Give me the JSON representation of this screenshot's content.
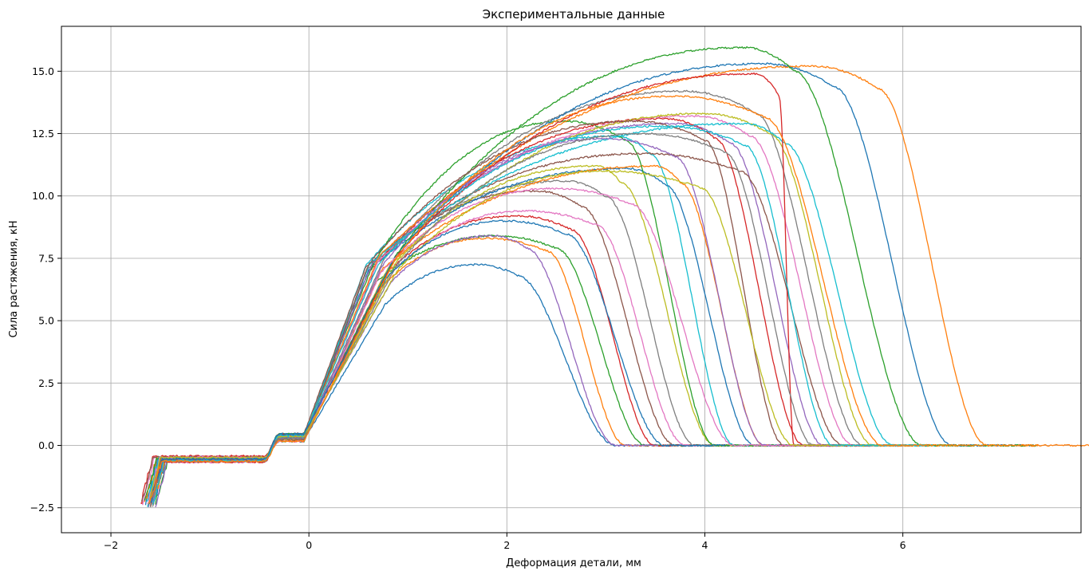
{
  "chart_data": {
    "type": "line",
    "title": "Экспериментальные данные",
    "xlabel": "Деформация детали, мм",
    "ylabel": "Сила растяжения, кН",
    "xlim": [
      -2.5,
      7.8
    ],
    "ylim": [
      -3.5,
      16.8
    ],
    "xticks": [
      -2,
      0,
      2,
      4,
      6
    ],
    "xtick_labels": [
      "−2",
      "0",
      "2",
      "4",
      "6"
    ],
    "yticks": [
      -2.5,
      0.0,
      2.5,
      5.0,
      7.5,
      10.0,
      12.5,
      15.0
    ],
    "ytick_labels": [
      "−2.5",
      "0.0",
      "2.5",
      "5.0",
      "7.5",
      "10.0",
      "12.5",
      "15.0"
    ],
    "grid": true,
    "legend": "none",
    "colors": [
      "#1f77b4",
      "#ff7f0e",
      "#2ca02c",
      "#d62728",
      "#9467bd",
      "#8c564b",
      "#e377c2",
      "#7f7f7f",
      "#bcbd22",
      "#17becf"
    ],
    "series_params": [
      {
        "peak": 7.25,
        "xpeak": 1.7,
        "xdrop": 2.1,
        "xend": 3.1,
        "start": -1.65
      },
      {
        "peak": 8.3,
        "xpeak": 1.8,
        "xdrop": 2.4,
        "xend": 3.2,
        "start": -1.6
      },
      {
        "peak": 8.4,
        "xpeak": 1.9,
        "xdrop": 2.5,
        "xend": 3.4,
        "start": -1.55
      },
      {
        "peak": 9.2,
        "xpeak": 2.1,
        "xdrop": 2.65,
        "xend": 3.5,
        "start": -1.7
      },
      {
        "peak": 8.4,
        "xpeak": 1.85,
        "xdrop": 2.2,
        "xend": 3.1,
        "start": -1.62
      },
      {
        "peak": 10.2,
        "xpeak": 2.3,
        "xdrop": 2.75,
        "xend": 3.7,
        "start": -1.6
      },
      {
        "peak": 9.4,
        "xpeak": 2.2,
        "xdrop": 2.9,
        "xend": 3.8,
        "start": -1.68
      },
      {
        "peak": 10.6,
        "xpeak": 2.6,
        "xdrop": 3.0,
        "xend": 3.9,
        "start": -1.58
      },
      {
        "peak": 11.2,
        "xpeak": 2.9,
        "xdrop": 3.15,
        "xend": 4.1,
        "start": -1.6
      },
      {
        "peak": 12.4,
        "xpeak": 3.1,
        "xdrop": 3.45,
        "xend": 4.3,
        "start": -1.63
      },
      {
        "peak": 11.1,
        "xpeak": 3.2,
        "xdrop": 3.6,
        "xend": 4.5,
        "start": -1.57
      },
      {
        "peak": 11.2,
        "xpeak": 3.5,
        "xdrop": 3.75,
        "xend": 4.6,
        "start": -1.66
      },
      {
        "peak": 13.0,
        "xpeak": 2.6,
        "xdrop": 3.2,
        "xend": 4.1,
        "start": -1.6
      },
      {
        "peak": 13.1,
        "xpeak": 3.6,
        "xdrop": 4.1,
        "xend": 5.0,
        "start": -1.61
      },
      {
        "peak": 12.9,
        "xpeak": 3.7,
        "xdrop": 4.25,
        "xend": 5.2,
        "start": -1.55
      },
      {
        "peak": 11.7,
        "xpeak": 3.4,
        "xdrop": 4.35,
        "xend": 5.4,
        "start": -1.69
      },
      {
        "peak": 13.2,
        "xpeak": 3.9,
        "xdrop": 4.45,
        "xend": 5.5,
        "start": -1.6
      },
      {
        "peak": 14.2,
        "xpeak": 3.8,
        "xdrop": 4.5,
        "xend": 5.6,
        "start": -1.62
      },
      {
        "peak": 13.3,
        "xpeak": 4.0,
        "xdrop": 4.65,
        "xend": 5.7,
        "start": -1.58
      },
      {
        "peak": 12.9,
        "xpeak": 4.4,
        "xdrop": 4.8,
        "xend": 5.9,
        "start": -1.64
      },
      {
        "peak": 15.3,
        "xpeak": 4.6,
        "xdrop": 5.3,
        "xend": 6.5,
        "start": -1.6
      },
      {
        "peak": 15.2,
        "xpeak": 5.1,
        "xdrop": 5.75,
        "xend": 6.85,
        "start": -1.57
      },
      {
        "peak": 15.95,
        "xpeak": 4.4,
        "xdrop": 4.9,
        "xend": 6.2,
        "start": -1.66
      },
      {
        "peak": 14.9,
        "xpeak": 4.5,
        "xdrop": 4.75,
        "xend": 4.9,
        "start": -1.6
      },
      {
        "peak": 12.3,
        "xpeak": 3.0,
        "xdrop": 3.7,
        "xend": 4.6,
        "start": -1.59
      },
      {
        "peak": 13.0,
        "xpeak": 3.3,
        "xdrop": 4.0,
        "xend": 4.8,
        "start": -1.61
      },
      {
        "peak": 10.3,
        "xpeak": 2.5,
        "xdrop": 3.25,
        "xend": 4.3,
        "start": -1.63
      },
      {
        "peak": 12.5,
        "xpeak": 3.4,
        "xdrop": 4.2,
        "xend": 5.1,
        "start": -1.6
      },
      {
        "peak": 11.0,
        "xpeak": 3.0,
        "xdrop": 3.95,
        "xend": 4.9,
        "start": -1.62
      },
      {
        "peak": 12.8,
        "xpeak": 3.6,
        "xdrop": 4.4,
        "xend": 5.3,
        "start": -1.58
      },
      {
        "peak": 9.0,
        "xpeak": 2.0,
        "xdrop": 2.6,
        "xend": 3.6,
        "start": -1.6
      },
      {
        "peak": 14.0,
        "xpeak": 3.7,
        "xdrop": 4.6,
        "xend": 5.8,
        "start": -1.61
      }
    ]
  }
}
